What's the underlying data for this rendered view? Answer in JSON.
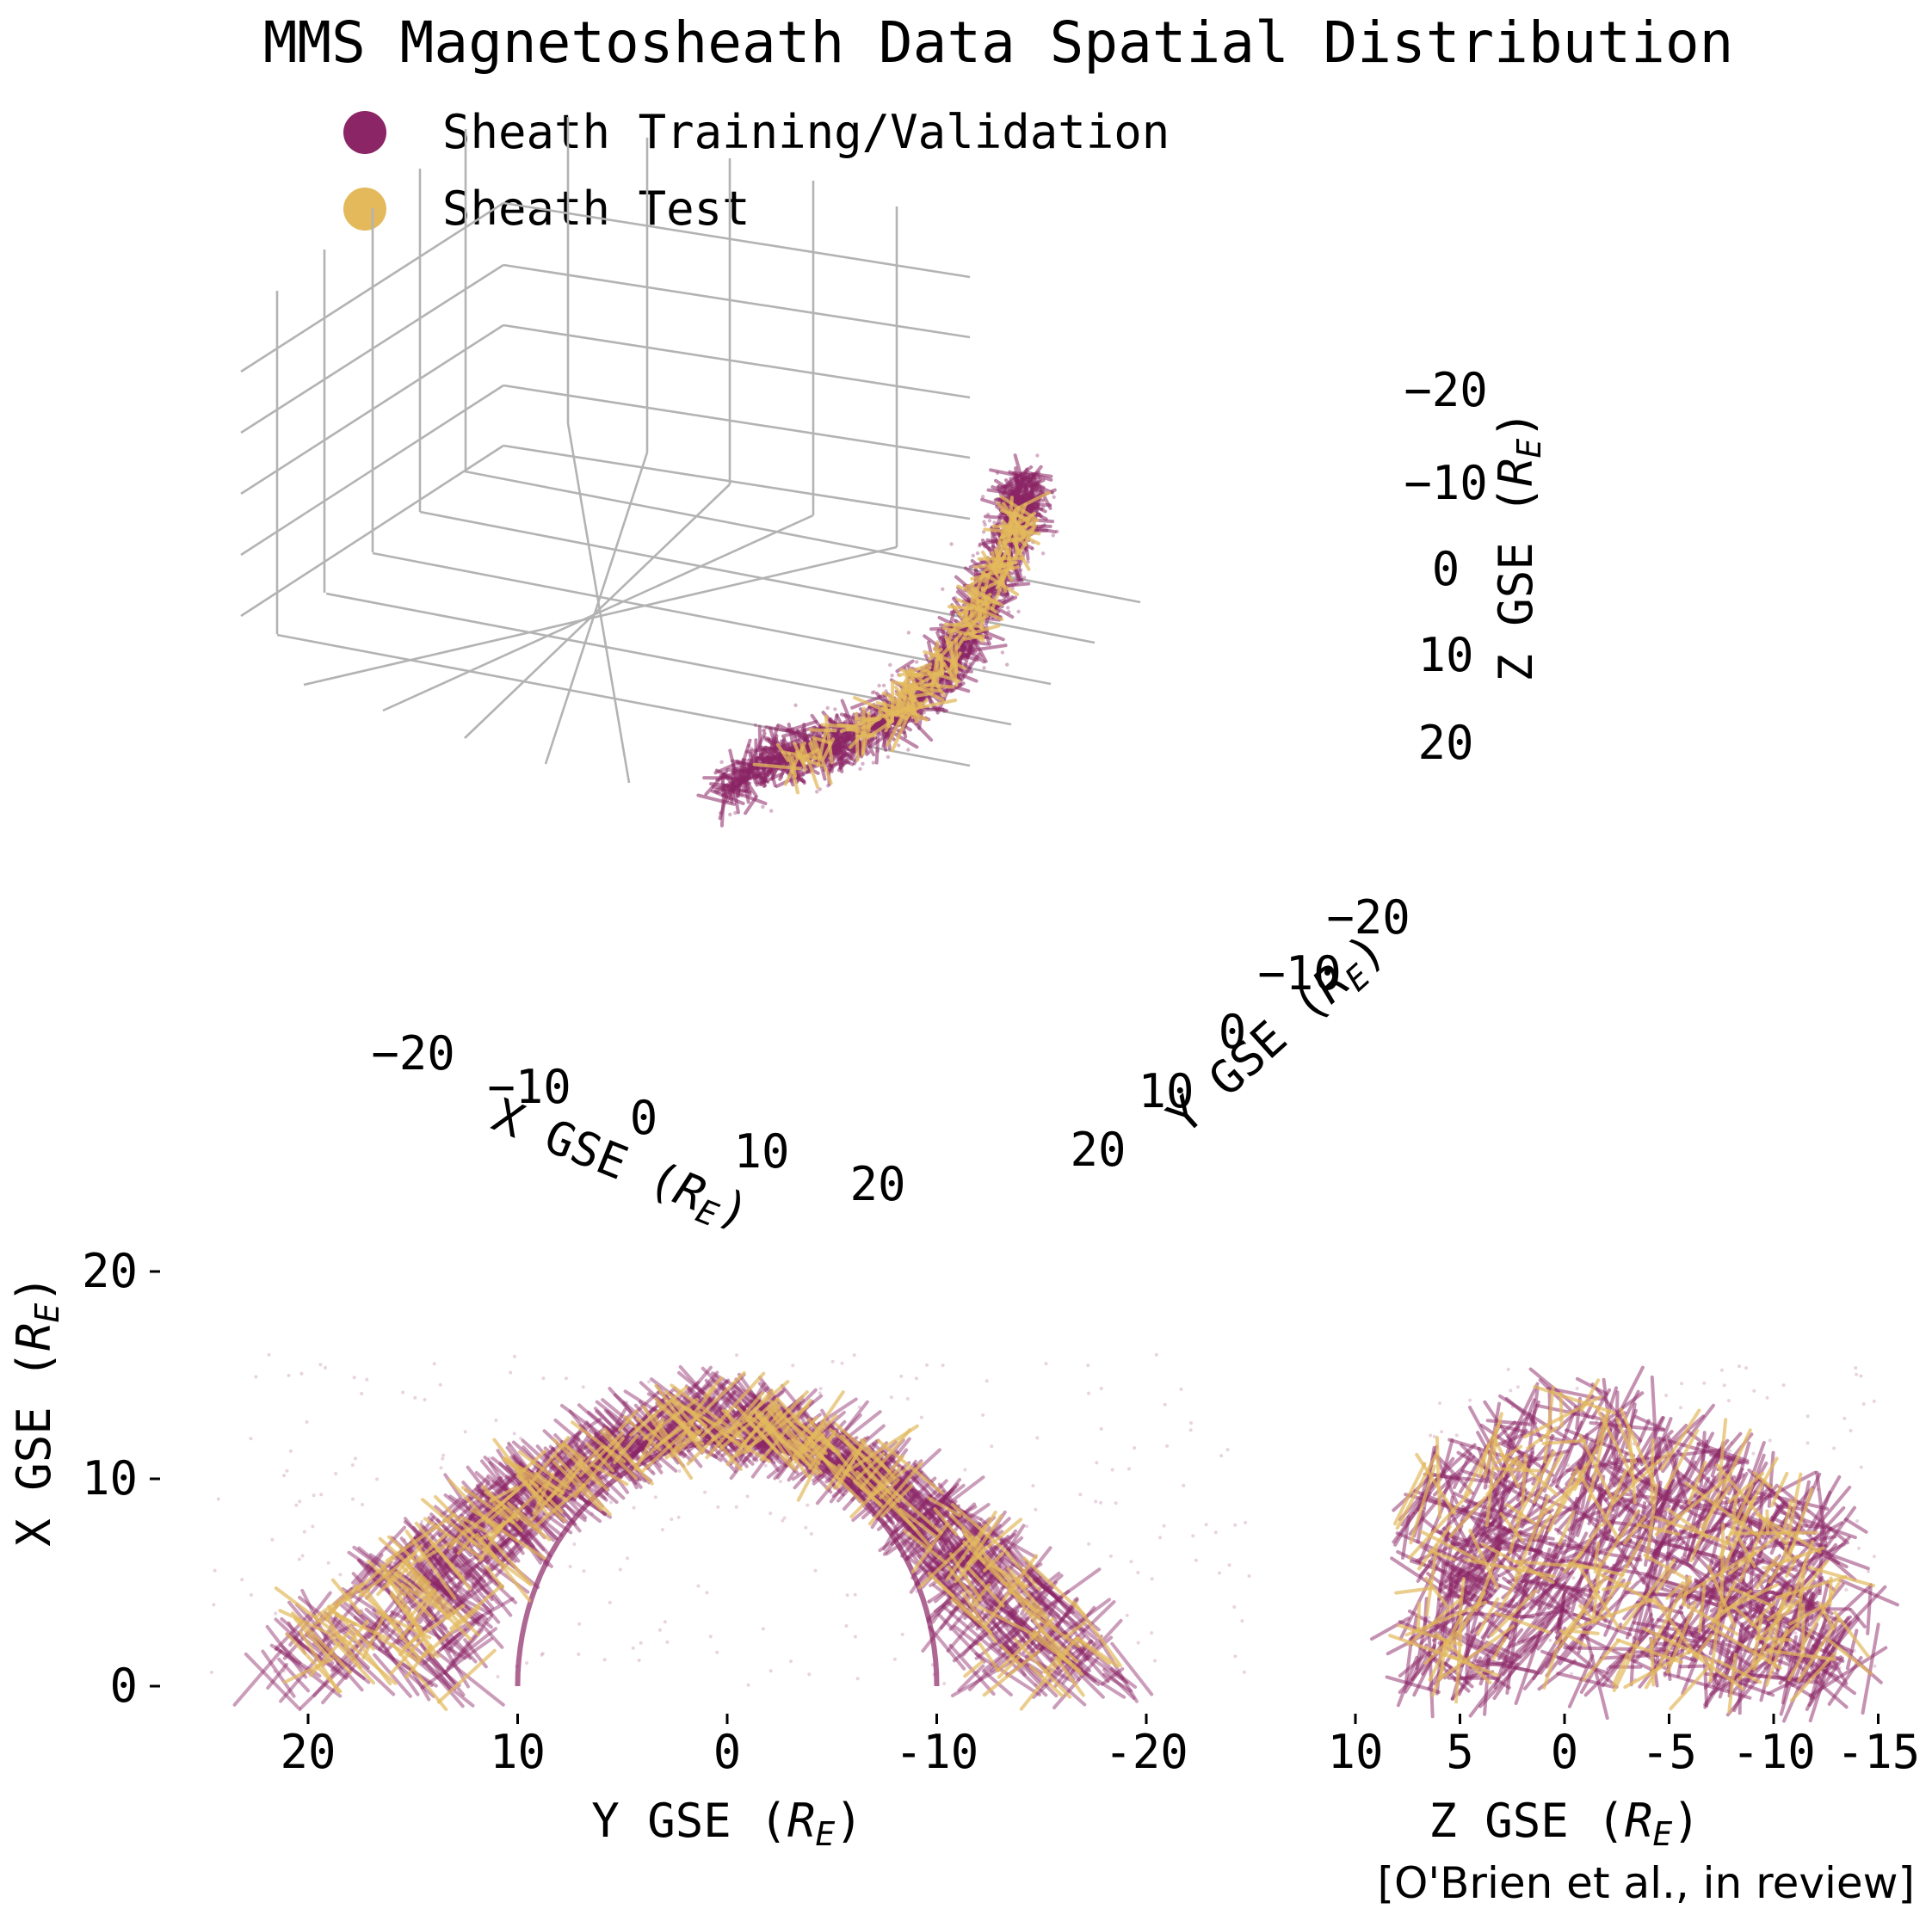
{
  "figure": {
    "title": "MMS Magnetosheath Data Spatial Distribution",
    "credit": "[O'Brien et al., in review]",
    "legend": [
      {
        "label": "Sheath Training/Validation",
        "color": "#8b2565"
      },
      {
        "label": "Sheath Test",
        "color": "#e3b95c"
      }
    ],
    "grid_color": "#b3b3b3"
  },
  "chart_data": [
    {
      "type": "scatter3d",
      "xlabel": "X GSE (R_E)",
      "ylabel": "Y GSE (R_E)",
      "zlabel": "Z GSE (R_E)",
      "xlim": [
        -25,
        25
      ],
      "ylim": [
        -25,
        25
      ],
      "zlim": [
        -25,
        25
      ],
      "xticks": [
        "−20",
        "−10",
        "0",
        "10",
        "20"
      ],
      "yticks": [
        "−20",
        "−10",
        "0",
        "10",
        "20"
      ],
      "zticks": [
        "−20",
        "−10",
        "0",
        "10",
        "20"
      ],
      "grid": true,
      "series": [
        {
          "name": "Sheath Training/Validation",
          "color": "#8b2565",
          "description_points": [
            [
              0,
              25,
              -8
            ],
            [
              6,
              18,
              -4
            ],
            [
              10,
              10,
              0
            ],
            [
              11,
              0,
              4
            ],
            [
              10,
              -8,
              8
            ],
            [
              7,
              -14,
              12
            ],
            [
              5,
              -18,
              16
            ]
          ]
        },
        {
          "name": "Sheath Test",
          "color": "#e3b95c",
          "description_points": [
            [
              2,
              22,
              -8
            ],
            [
              8,
              14,
              -3
            ],
            [
              11,
              4,
              2
            ],
            [
              10,
              -6,
              7
            ],
            [
              7,
              -12,
              11
            ]
          ]
        }
      ]
    },
    {
      "type": "scatter",
      "xlabel": "Y GSE (R_E)",
      "ylabel": "X GSE (R_E)",
      "xlim": [
        27,
        -27
      ],
      "ylim": [
        0,
        20
      ],
      "xticks": [
        "20",
        "10",
        "0",
        "-10",
        "-20"
      ],
      "yticks": [
        "0",
        "10",
        "20"
      ],
      "series": [
        {
          "name": "Sheath Training/Validation",
          "color": "#8b2565",
          "arc_points": [
            [
              25,
              1
            ],
            [
              20,
              4
            ],
            [
              15,
              7
            ],
            [
              10,
              9
            ],
            [
              5,
              11.5
            ],
            [
              0,
              12
            ],
            [
              -5,
              11
            ],
            [
              -8,
              8
            ],
            [
              -10,
              0
            ],
            [
              -15,
              5
            ],
            [
              -20,
              2
            ],
            [
              -25,
              0
            ]
          ]
        },
        {
          "name": "Sheath Test",
          "color": "#e3b95c",
          "arc_points": [
            [
              22,
              2
            ],
            [
              15,
              5
            ],
            [
              9,
              9
            ],
            [
              4,
              11
            ],
            [
              0,
              11.5
            ],
            [
              -5,
              10
            ],
            [
              -9,
              5
            ],
            [
              -15,
              3
            ]
          ]
        }
      ]
    },
    {
      "type": "scatter",
      "xlabel": "Z GSE (R_E)",
      "ylabel": "",
      "xlim": [
        10,
        -17
      ],
      "ylim": [
        0,
        20
      ],
      "xticks": [
        "10",
        "5",
        "0",
        "-5",
        "-10",
        "-15"
      ],
      "series": [
        {
          "name": "Sheath Training/Validation",
          "color": "#8b2565",
          "cloud": {
            "x_range": [
              8,
              -15
            ],
            "y_range": [
              0,
              15
            ]
          }
        },
        {
          "name": "Sheath Test",
          "color": "#e3b95c",
          "cloud": {
            "x_range": [
              7,
              -12
            ],
            "y_range": [
              0,
              14
            ]
          }
        }
      ]
    }
  ]
}
